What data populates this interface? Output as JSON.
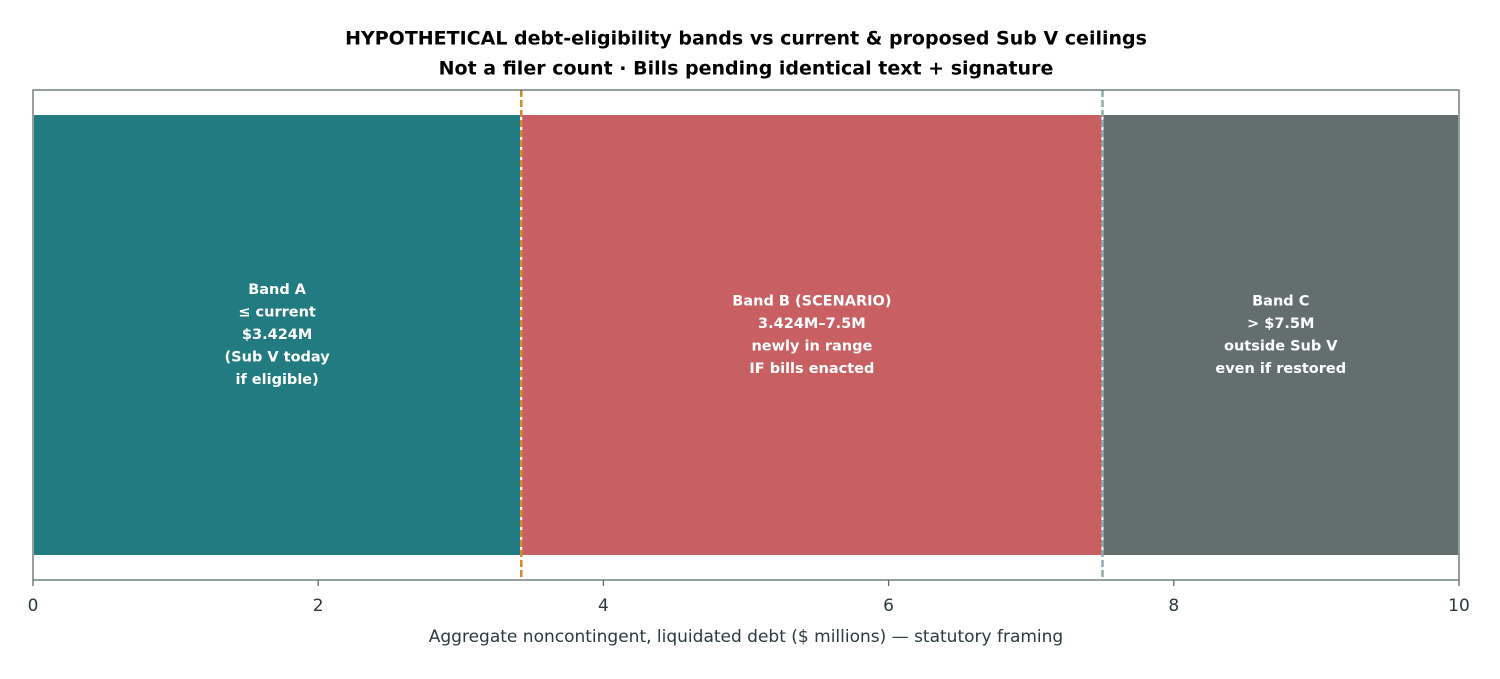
{
  "chart_data": {
    "type": "stacked-hbar",
    "title": "HYPOTHETICAL debt-eligibility bands vs current & proposed Sub V ceilings",
    "subtitle": "Not a filer count · Bills pending identical text + signature",
    "xlabel": "Aggregate noncontingent, liquidated debt ($ millions) — statutory framing",
    "xlim": [
      0,
      10
    ],
    "xticks": [
      0,
      2,
      4,
      6,
      8,
      10
    ],
    "segments": [
      {
        "value": 3.424,
        "color": "#217b80",
        "label": [
          "Band A",
          "≤ current",
          "$3.424M",
          "(Sub V today",
          "if eligible)"
        ]
      },
      {
        "value": 4.076,
        "color": "#c86063",
        "label": [
          "Band B (SCENARIO)",
          "3.424M–7.5M",
          "newly in range",
          "IF bills enacted"
        ]
      },
      {
        "value": 2.5,
        "color": "#636f6f",
        "label": [
          "Band C",
          "> $7.5M",
          "outside Sub V",
          "even if restored"
        ]
      }
    ],
    "reference_lines": [
      {
        "value": 3.424,
        "color": "#d08a2a"
      },
      {
        "value": 7.5,
        "color": "#8fabab"
      }
    ]
  }
}
